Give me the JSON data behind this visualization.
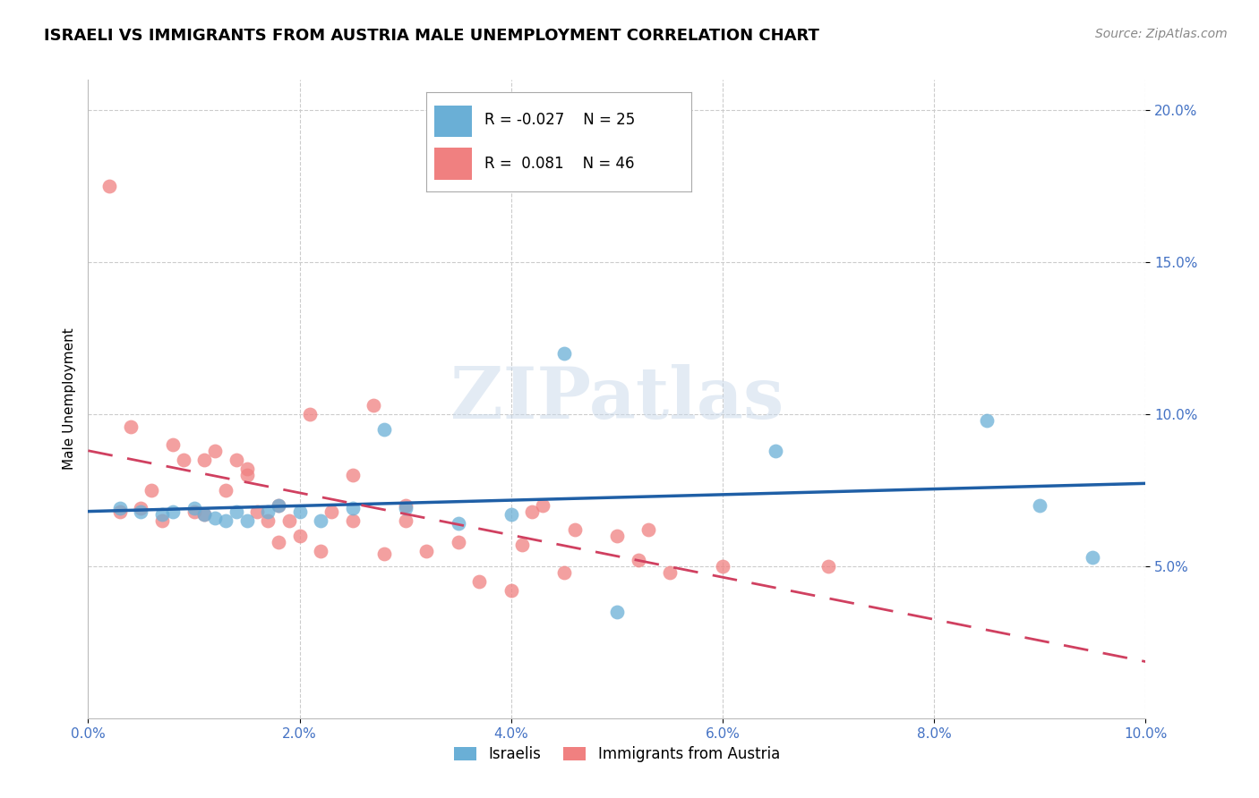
{
  "title": "ISRAELI VS IMMIGRANTS FROM AUSTRIA MALE UNEMPLOYMENT CORRELATION CHART",
  "source": "Source: ZipAtlas.com",
  "ylabel": "Male Unemployment",
  "watermark": "ZIPatlas",
  "legend_israeli": {
    "R": "-0.027",
    "N": "25"
  },
  "legend_austria": {
    "R": "0.081",
    "N": "46"
  },
  "x_min": 0.0,
  "x_max": 0.1,
  "y_min": 0.0,
  "y_max": 0.21,
  "y_ticks": [
    0.05,
    0.1,
    0.15,
    0.2
  ],
  "x_ticks": [
    0.0,
    0.02,
    0.04,
    0.06,
    0.08,
    0.1
  ],
  "israeli_color": "#6aafd6",
  "austria_color": "#f08080",
  "israeli_line_color": "#1f5fa6",
  "austria_line_color": "#d04060",
  "israeli_x": [
    0.003,
    0.005,
    0.007,
    0.008,
    0.01,
    0.011,
    0.012,
    0.013,
    0.014,
    0.015,
    0.017,
    0.018,
    0.02,
    0.022,
    0.025,
    0.028,
    0.03,
    0.035,
    0.04,
    0.045,
    0.05,
    0.065,
    0.085,
    0.09,
    0.095
  ],
  "israeli_y": [
    0.069,
    0.068,
    0.067,
    0.068,
    0.069,
    0.067,
    0.066,
    0.065,
    0.068,
    0.065,
    0.068,
    0.07,
    0.068,
    0.065,
    0.069,
    0.095,
    0.069,
    0.064,
    0.067,
    0.12,
    0.035,
    0.088,
    0.098,
    0.07,
    0.053
  ],
  "austria_x": [
    0.002,
    0.003,
    0.004,
    0.005,
    0.006,
    0.007,
    0.008,
    0.009,
    0.01,
    0.011,
    0.011,
    0.012,
    0.013,
    0.014,
    0.015,
    0.015,
    0.016,
    0.017,
    0.018,
    0.018,
    0.019,
    0.02,
    0.021,
    0.022,
    0.023,
    0.025,
    0.025,
    0.027,
    0.028,
    0.03,
    0.03,
    0.032,
    0.035,
    0.037,
    0.04,
    0.041,
    0.042,
    0.043,
    0.045,
    0.046,
    0.05,
    0.052,
    0.053,
    0.055,
    0.06,
    0.07
  ],
  "austria_y": [
    0.175,
    0.068,
    0.096,
    0.069,
    0.075,
    0.065,
    0.09,
    0.085,
    0.068,
    0.067,
    0.085,
    0.088,
    0.075,
    0.085,
    0.08,
    0.082,
    0.068,
    0.065,
    0.058,
    0.07,
    0.065,
    0.06,
    0.1,
    0.055,
    0.068,
    0.065,
    0.08,
    0.103,
    0.054,
    0.065,
    0.07,
    0.055,
    0.058,
    0.045,
    0.042,
    0.057,
    0.068,
    0.07,
    0.048,
    0.062,
    0.06,
    0.052,
    0.062,
    0.048,
    0.05,
    0.05
  ],
  "title_fontsize": 13,
  "axis_label_fontsize": 11,
  "tick_fontsize": 11,
  "source_fontsize": 10,
  "background_color": "#ffffff",
  "grid_color": "#cccccc",
  "tick_color": "#4472c4",
  "axis_color": "#bbbbbb"
}
